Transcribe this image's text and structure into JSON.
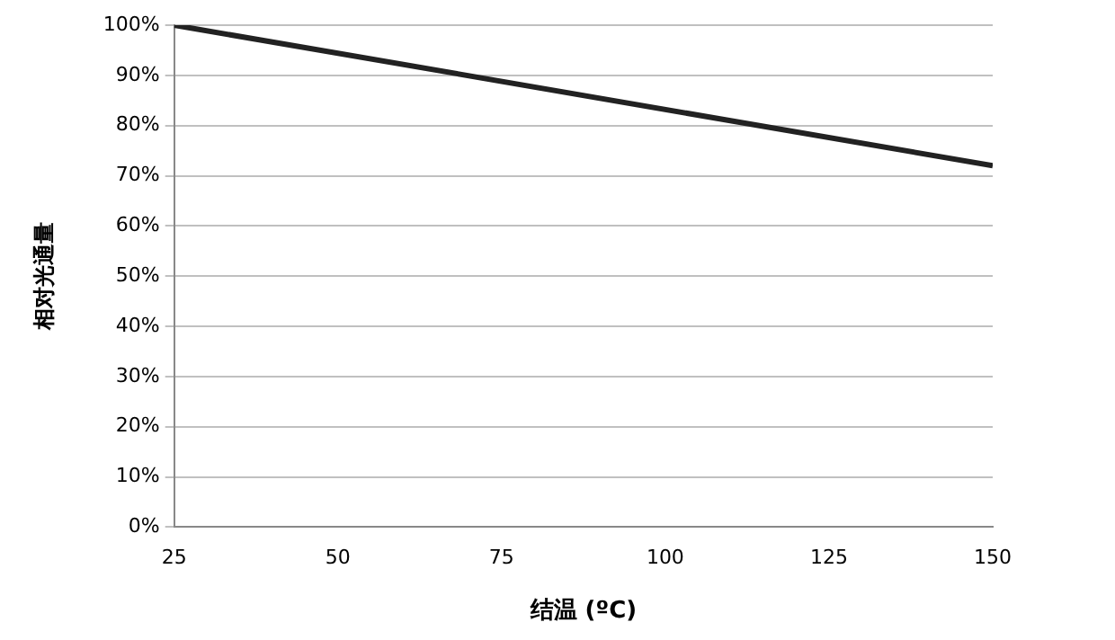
{
  "chart_data": {
    "type": "line",
    "xlabel": "结温 (ºC)",
    "ylabel": "相对光通量",
    "x": [
      25,
      150
    ],
    "series": [
      {
        "color": "#222222",
        "values": [
          100,
          72
        ]
      }
    ],
    "xlim": [
      25,
      150
    ],
    "xticks": [
      25,
      50,
      75,
      100,
      125,
      150
    ],
    "ylim": [
      0,
      100
    ],
    "yticks": [
      {
        "value": 0,
        "label": "0%"
      },
      {
        "value": 10,
        "label": "10%"
      },
      {
        "value": 20,
        "label": "20%"
      },
      {
        "value": 30,
        "label": "30%"
      },
      {
        "value": 40,
        "label": "40%"
      },
      {
        "value": 50,
        "label": "50%"
      },
      {
        "value": 60,
        "label": "60%"
      },
      {
        "value": 70,
        "label": "70%"
      },
      {
        "value": 80,
        "label": "80%"
      },
      {
        "value": 90,
        "label": "90%"
      },
      {
        "value": 100,
        "label": "100%"
      }
    ],
    "grid": "y",
    "legend": false,
    "marker": "none",
    "line_style": "solid"
  }
}
